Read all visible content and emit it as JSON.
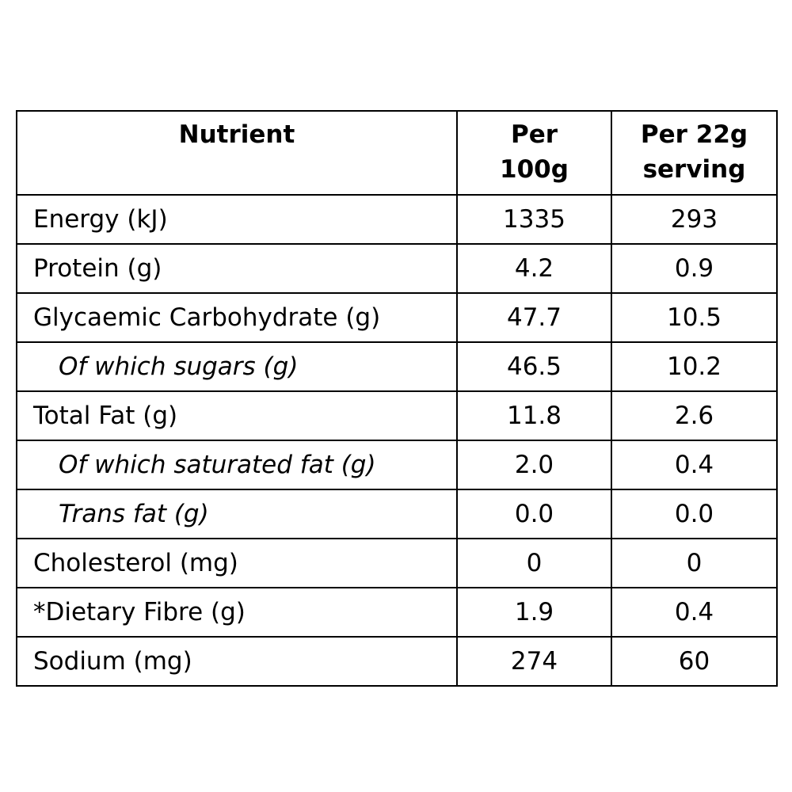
{
  "table": {
    "header": {
      "nutrient": "Nutrient",
      "per100_line1": "Per",
      "per100_line2": "100g",
      "serving_line1": "Per 22g",
      "serving_line2": "serving"
    },
    "rows": [
      {
        "name": "Energy (kJ)",
        "per100": "1335",
        "serving": "293",
        "sub": false
      },
      {
        "name": "Protein (g)",
        "per100": "4.2",
        "serving": "0.9",
        "sub": false
      },
      {
        "name": "Glycaemic Carbohydrate (g)",
        "per100": "47.7",
        "serving": "10.5",
        "sub": false
      },
      {
        "name": "Of which sugars (g)",
        "per100": "46.5",
        "serving": "10.2",
        "sub": true
      },
      {
        "name": "Total Fat (g)",
        "per100": "11.8",
        "serving": "2.6",
        "sub": false
      },
      {
        "name": "Of which saturated fat (g)",
        "per100": "2.0",
        "serving": "0.4",
        "sub": true
      },
      {
        "name": "Trans fat (g)",
        "per100": "0.0",
        "serving": "0.0",
        "sub": true
      },
      {
        "name": "Cholesterol (mg)",
        "per100": "0",
        "serving": "0",
        "sub": false
      },
      {
        "name": "*Dietary Fibre (g)",
        "per100": "1.9",
        "serving": "0.4",
        "sub": false
      },
      {
        "name": "Sodium (mg)",
        "per100": "274",
        "serving": "60",
        "sub": false
      }
    ]
  }
}
